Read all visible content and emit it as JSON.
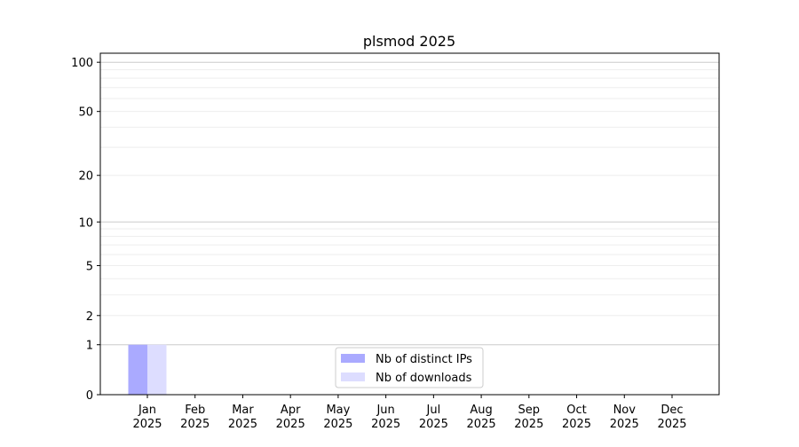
{
  "chart_data": {
    "type": "bar",
    "title": "plsmod 2025",
    "xlabel": "",
    "ylabel": "",
    "y_scale": "log(1+y)",
    "ylim": [
      0,
      113.5
    ],
    "y_ticks": [
      0,
      1,
      2,
      5,
      10,
      20,
      50,
      100
    ],
    "grid": true,
    "legend_position": "lower center",
    "categories": [
      "Jan\n2025",
      "Feb\n2025",
      "Mar\n2025",
      "Apr\n2025",
      "May\n2025",
      "Jun\n2025",
      "Jul\n2025",
      "Aug\n2025",
      "Sep\n2025",
      "Oct\n2025",
      "Nov\n2025",
      "Dec\n2025"
    ],
    "series": [
      {
        "name": "Nb of distinct IPs",
        "color": "#aaaaff",
        "values": [
          1,
          0,
          0,
          0,
          0,
          0,
          0,
          0,
          0,
          0,
          0,
          0
        ]
      },
      {
        "name": "Nb of downloads",
        "color": "#ddddff",
        "values": [
          1,
          0,
          0,
          0,
          0,
          0,
          0,
          0,
          0,
          0,
          0,
          0
        ]
      }
    ]
  }
}
